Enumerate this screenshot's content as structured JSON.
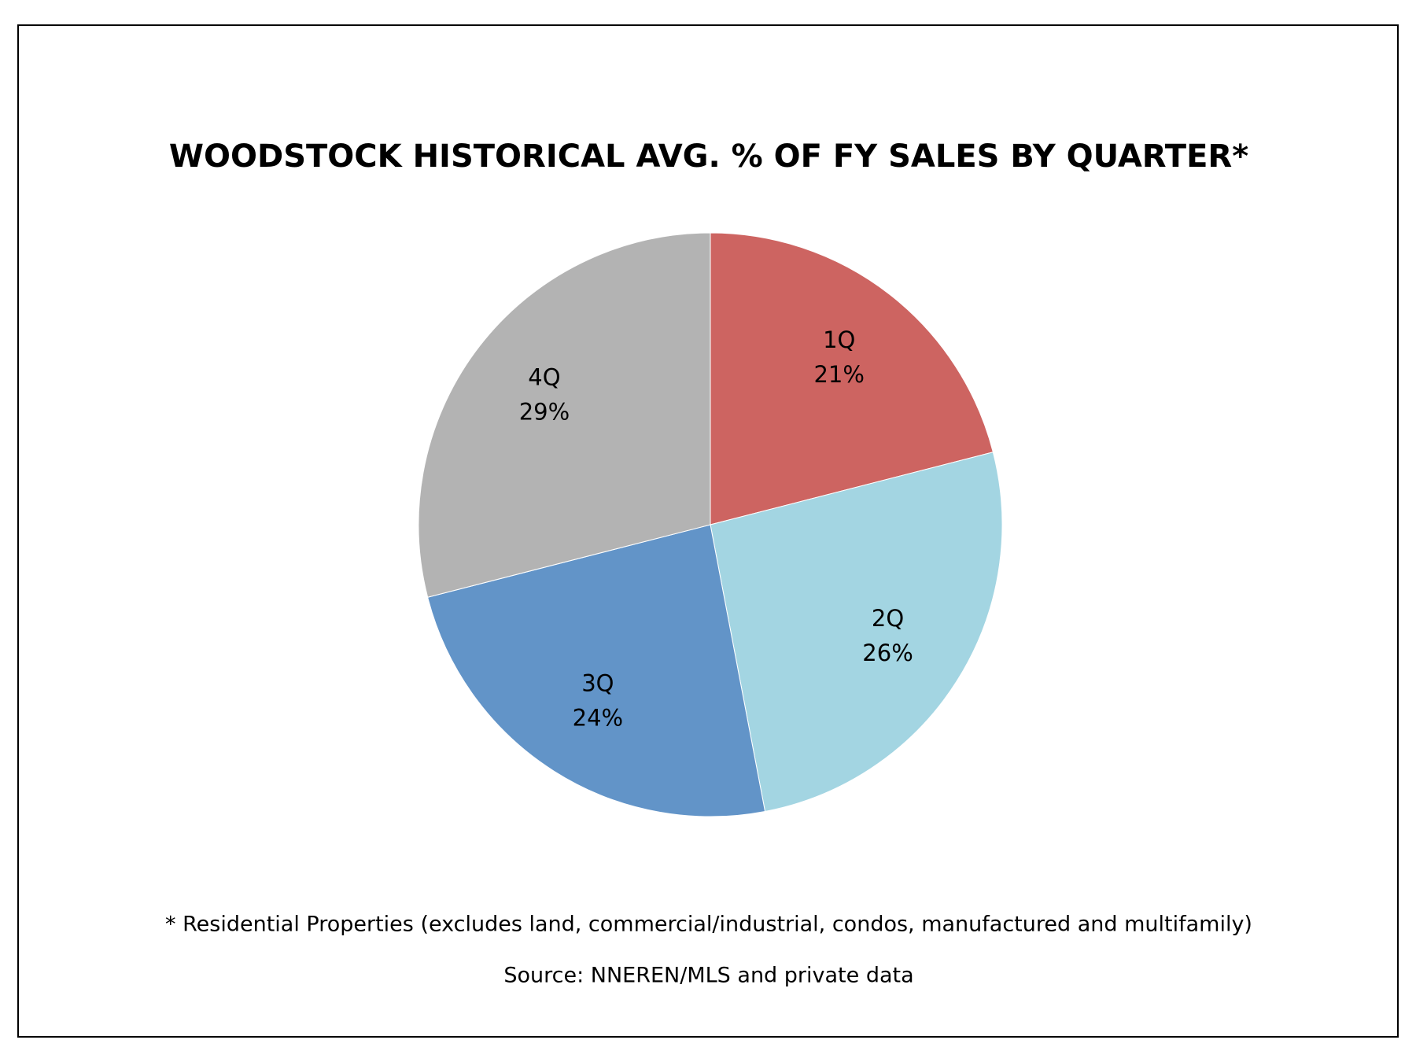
{
  "chart_data": {
    "type": "pie",
    "title": "WOODSTOCK HISTORICAL AVG. % OF FY SALES BY QUARTER*",
    "categories": [
      "1Q",
      "2Q",
      "3Q",
      "4Q"
    ],
    "values": [
      21,
      26,
      24,
      29
    ],
    "value_labels": [
      "21%",
      "26%",
      "24%",
      "29%"
    ],
    "colors": [
      "#cd6461",
      "#a3d5e2",
      "#6294c8",
      "#b3b3b3"
    ],
    "footnote": "* Residential Properties (excludes land, commercial/industrial, condos, manufactured and multifamily)",
    "source": "Source: NNEREN/MLS and private data"
  }
}
